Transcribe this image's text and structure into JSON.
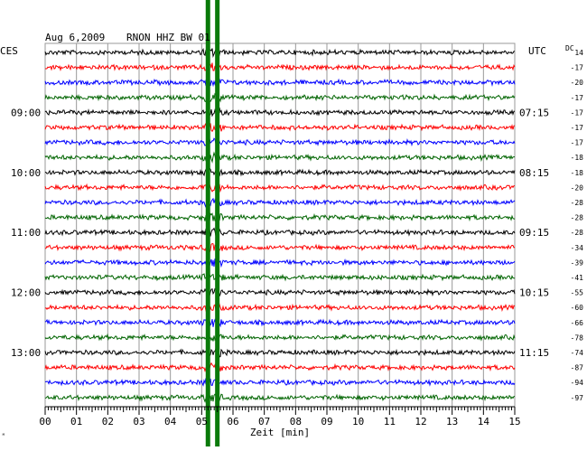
{
  "header": {
    "date": "Aug 6,2009",
    "station": "RNON HHZ BW 01",
    "left_zone": "CES",
    "right_zone": "UTC",
    "dc_label": "DC"
  },
  "chart_data": {
    "type": "line",
    "title": "Aug 6,2009   RNON HHZ BW 01",
    "xlabel": "Zeit [min]",
    "xlim": [
      0,
      15
    ],
    "x_ticks": [
      "00",
      "01",
      "02",
      "03",
      "04",
      "05",
      "06",
      "07",
      "08",
      "09",
      "10",
      "11",
      "12",
      "13",
      "14",
      "15"
    ],
    "row_colors": [
      "#000000",
      "#ff0000",
      "#0000ff",
      "#006400"
    ],
    "left_hour_labels": [
      {
        "row": 4,
        "label": "09:00"
      },
      {
        "row": 8,
        "label": "10:00"
      },
      {
        "row": 12,
        "label": "11:00"
      },
      {
        "row": 16,
        "label": "12:00"
      },
      {
        "row": 20,
        "label": "13:00"
      }
    ],
    "right_hour_labels": [
      {
        "row": 4,
        "label": "07:15"
      },
      {
        "row": 8,
        "label": "08:15"
      },
      {
        "row": 12,
        "label": "09:15"
      },
      {
        "row": 16,
        "label": "10:15"
      },
      {
        "row": 20,
        "label": "11:15"
      }
    ],
    "dc_offsets": [
      "14",
      "-17",
      "-20",
      "-17",
      "-17",
      "-17",
      "-17",
      "-18",
      "-18",
      "-20",
      "-28",
      "-28",
      "-28",
      "-34",
      "-39",
      "-41",
      "-55",
      "-60",
      "-66",
      "-78",
      "-74",
      "-87",
      "-94",
      "-97"
    ],
    "event_marker_minutes": [
      5.2,
      5.5
    ],
    "event_color": "#0a7a0a"
  },
  "corner_mark": "ᴹ"
}
